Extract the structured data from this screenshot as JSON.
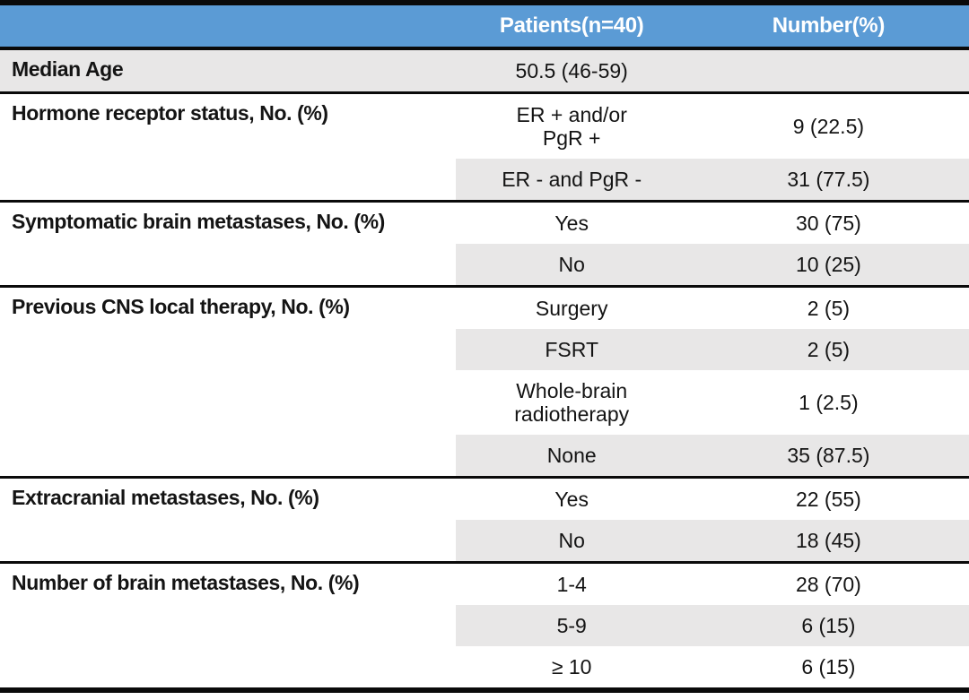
{
  "table": {
    "title": "patient-characteristics-table",
    "header": {
      "col1": "",
      "col2": "Patients(n=40)",
      "col3": "Number(%)"
    },
    "sections": [
      {
        "label": "Median Age",
        "shade_label": true,
        "rows": [
          {
            "value": "50.5 (46-59)",
            "number": "",
            "shaded": true
          }
        ]
      },
      {
        "label": "Hormone receptor status, No. (%)",
        "shade_label": false,
        "rows": [
          {
            "value": "ER + and/or\nPgR +",
            "number": "9 (22.5)",
            "shaded": false
          },
          {
            "value": "ER - and PgR -",
            "number": "31 (77.5)",
            "shaded": true
          }
        ]
      },
      {
        "label": "Symptomatic brain metastases, No. (%)",
        "shade_label": false,
        "rows": [
          {
            "value": "Yes",
            "number": "30 (75)",
            "shaded": false
          },
          {
            "value": "No",
            "number": "10 (25)",
            "shaded": true
          }
        ]
      },
      {
        "label": "Previous CNS local therapy, No. (%)",
        "shade_label": false,
        "rows": [
          {
            "value": "Surgery",
            "number": "2 (5)",
            "shaded": false
          },
          {
            "value": "FSRT",
            "number": "2 (5)",
            "shaded": true
          },
          {
            "value": "Whole-brain\nradiotherapy",
            "number": "1 (2.5)",
            "shaded": false
          },
          {
            "value": "None",
            "number": "35 (87.5)",
            "shaded": true
          }
        ]
      },
      {
        "label": "Extracranial metastases, No. (%)",
        "shade_label": false,
        "rows": [
          {
            "value": "Yes",
            "number": "22 (55)",
            "shaded": false
          },
          {
            "value": "No",
            "number": "18 (45)",
            "shaded": true
          }
        ]
      },
      {
        "label": "Number of brain metastases, No. (%)",
        "shade_label": false,
        "rows": [
          {
            "value": "1-4",
            "number": "28 (70)",
            "shaded": false
          },
          {
            "value": "5-9",
            "number": "6 (15)",
            "shaded": true
          },
          {
            "value": "≥ 10",
            "number": "6 (15)",
            "shaded": false
          }
        ]
      }
    ],
    "colors": {
      "header_bg": "#5B9BD5",
      "header_text": "#FFFFFF",
      "shade": "#E8E7E7",
      "line": "#0A0A0A",
      "text": "#141414"
    }
  }
}
